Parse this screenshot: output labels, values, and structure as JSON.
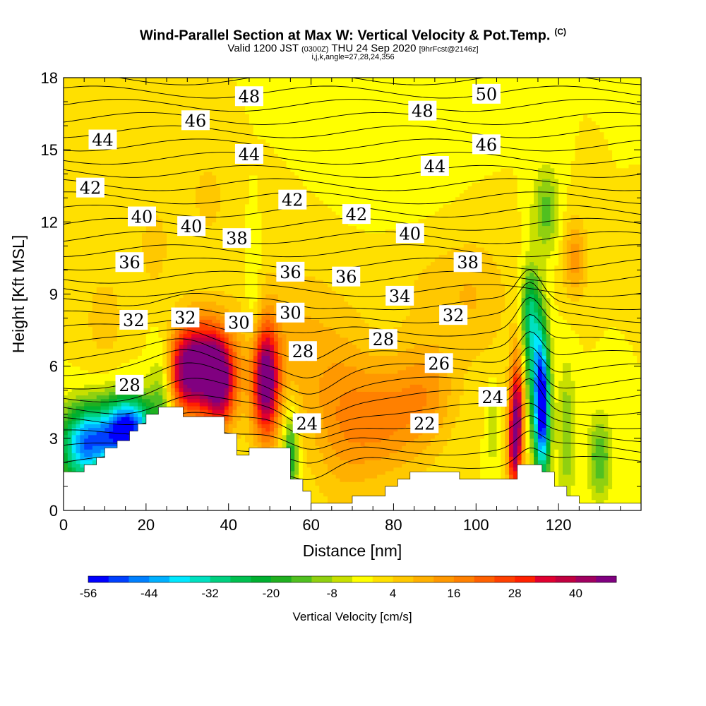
{
  "header": {
    "title": "Wind-Parallel Section at Max W: Vertical Velocity & Pot.Temp.",
    "copyright": "(C)",
    "valid_prefix": "Valid 1200 JST",
    "utc": "(0300Z)",
    "valid_date": "THU 24 Sep 2020",
    "forecast": "[9hrFcst@2146z]",
    "indices": "i,j,k,angle=27,28,24,356"
  },
  "chart_data": {
    "type": "contour",
    "xlabel": "Distance [nm]",
    "ylabel": "Height [Kft MSL]",
    "xlim": [
      0,
      140
    ],
    "ylim": [
      0,
      18
    ],
    "xticks": [
      0,
      20,
      40,
      60,
      80,
      100,
      120
    ],
    "yticks": [
      0,
      3,
      6,
      9,
      12,
      15,
      18
    ],
    "colorbar": {
      "label": "Vertical Velocity [cm/s]",
      "ticks": [
        -56,
        -44,
        -32,
        -20,
        -8,
        4,
        16,
        28,
        40
      ],
      "min": -56,
      "max": 48,
      "step": 4,
      "colors": [
        "#0000ff",
        "#0040ff",
        "#0080ff",
        "#00b0ff",
        "#00e8ff",
        "#00e0c0",
        "#00d080",
        "#00c050",
        "#00b030",
        "#20b020",
        "#50c020",
        "#90d010",
        "#c8e000",
        "#ffff00",
        "#ffe000",
        "#ffc800",
        "#ffb000",
        "#ff9800",
        "#ff8000",
        "#ff6000",
        "#ff4000",
        "#ff2000",
        "#e00030",
        "#c00040",
        "#a00060",
        "#800080"
      ]
    },
    "theta_labels": [
      {
        "v": "48",
        "x": 45,
        "y": 17.2
      },
      {
        "v": "50",
        "x": 102.5,
        "y": 17.3
      },
      {
        "v": "46",
        "x": 32,
        "y": 16.2
      },
      {
        "v": "48",
        "x": 87,
        "y": 16.6
      },
      {
        "v": "44",
        "x": 9.5,
        "y": 15.4
      },
      {
        "v": "44",
        "x": 45,
        "y": 14.8
      },
      {
        "v": "46",
        "x": 102.5,
        "y": 15.2
      },
      {
        "v": "44",
        "x": 90,
        "y": 14.3
      },
      {
        "v": "42",
        "x": 6.5,
        "y": 13.4
      },
      {
        "v": "42",
        "x": 55.5,
        "y": 12.9
      },
      {
        "v": "42",
        "x": 71,
        "y": 12.3
      },
      {
        "v": "40",
        "x": 19,
        "y": 12.2
      },
      {
        "v": "40",
        "x": 31,
        "y": 11.8
      },
      {
        "v": "38",
        "x": 42,
        "y": 11.3
      },
      {
        "v": "40",
        "x": 84,
        "y": 11.5
      },
      {
        "v": "36",
        "x": 16,
        "y": 10.3
      },
      {
        "v": "36",
        "x": 55,
        "y": 9.9
      },
      {
        "v": "36",
        "x": 68.5,
        "y": 9.7
      },
      {
        "v": "38",
        "x": 98,
        "y": 10.3
      },
      {
        "v": "34",
        "x": 81.5,
        "y": 8.9
      },
      {
        "v": "32",
        "x": 17,
        "y": 7.9
      },
      {
        "v": "32",
        "x": 29.5,
        "y": 8.0
      },
      {
        "v": "30",
        "x": 42.5,
        "y": 7.8
      },
      {
        "v": "30",
        "x": 55,
        "y": 8.2
      },
      {
        "v": "32",
        "x": 94.5,
        "y": 8.1
      },
      {
        "v": "28",
        "x": 16,
        "y": 5.2
      },
      {
        "v": "28",
        "x": 58,
        "y": 6.6
      },
      {
        "v": "28",
        "x": 77.5,
        "y": 7.1
      },
      {
        "v": "26",
        "x": 91,
        "y": 6.1
      },
      {
        "v": "24",
        "x": 59,
        "y": 3.6
      },
      {
        "v": "24",
        "x": 104,
        "y": 4.7
      },
      {
        "v": "22",
        "x": 87.5,
        "y": 3.6
      }
    ],
    "terrain": [
      [
        0,
        1.6
      ],
      [
        5,
        1.6
      ],
      [
        5,
        1.9
      ],
      [
        8,
        1.9
      ],
      [
        8,
        2.2
      ],
      [
        10,
        2.2
      ],
      [
        10,
        2.6
      ],
      [
        13,
        2.6
      ],
      [
        13,
        2.9
      ],
      [
        16,
        2.9
      ],
      [
        16,
        3.3
      ],
      [
        18,
        3.3
      ],
      [
        18,
        3.6
      ],
      [
        20,
        3.6
      ],
      [
        20,
        4.0
      ],
      [
        23,
        4.0
      ],
      [
        23,
        4.3
      ],
      [
        29,
        4.3
      ],
      [
        29,
        3.9
      ],
      [
        35,
        3.9
      ],
      [
        39,
        3.9
      ],
      [
        39,
        3.2
      ],
      [
        42,
        3.2
      ],
      [
        42,
        2.3
      ],
      [
        45,
        2.3
      ],
      [
        45,
        2.6
      ],
      [
        50,
        2.6
      ],
      [
        55,
        2.6
      ],
      [
        55,
        1.3
      ],
      [
        58,
        1.3
      ],
      [
        58,
        0.8
      ],
      [
        60,
        0.8
      ],
      [
        60,
        0.3
      ],
      [
        66,
        0.3
      ],
      [
        70,
        0.3
      ],
      [
        70,
        0.6
      ],
      [
        73,
        0.6
      ],
      [
        78,
        0.6
      ],
      [
        78,
        1.0
      ],
      [
        81,
        1.0
      ],
      [
        81,
        1.3
      ],
      [
        84,
        1.3
      ],
      [
        84,
        1.6
      ],
      [
        90,
        1.6
      ],
      [
        96,
        1.6
      ],
      [
        96,
        1.3
      ],
      [
        102,
        1.3
      ],
      [
        108,
        1.3
      ],
      [
        110,
        1.3
      ],
      [
        110,
        1.9
      ],
      [
        116,
        1.9
      ],
      [
        116,
        1.6
      ],
      [
        119,
        1.6
      ],
      [
        119,
        1.0
      ],
      [
        122,
        1.0
      ],
      [
        122,
        0.6
      ],
      [
        125,
        0.6
      ],
      [
        125,
        0.3
      ],
      [
        130,
        0.3
      ],
      [
        140,
        0.3
      ]
    ]
  }
}
